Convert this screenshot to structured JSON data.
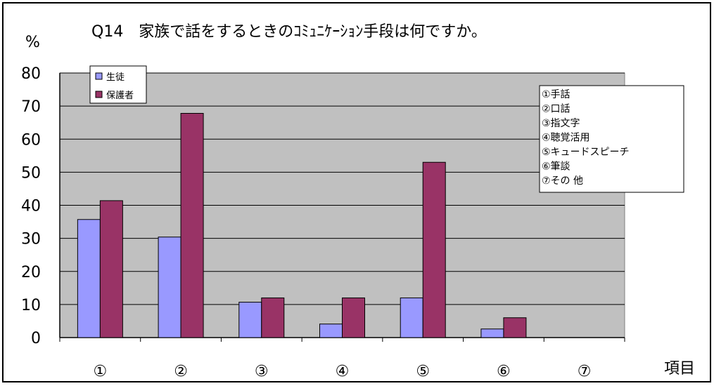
{
  "chart_data": {
    "type": "bar",
    "title": "Q14　家族で話をするときのｺﾐｭﾆｹｰｼｮﾝ手段は何ですか。",
    "ylabel": "%",
    "xlabel": "項目",
    "ylim": [
      0,
      80
    ],
    "yticks": [
      0,
      10,
      20,
      30,
      40,
      50,
      60,
      70,
      80
    ],
    "categories": [
      "①",
      "②",
      "③",
      "④",
      "⑤",
      "⑥",
      "⑦"
    ],
    "series": [
      {
        "name": "生徒",
        "color": "#9999ff",
        "values": [
          35.7,
          30.4,
          10.7,
          4.1,
          12.0,
          2.6,
          0
        ]
      },
      {
        "name": "保護者",
        "color": "#993366",
        "values": [
          41.4,
          67.8,
          12.0,
          12.0,
          53.0,
          6.0,
          0
        ]
      }
    ],
    "grid": true,
    "plot_background": "#c0c0c0",
    "legend_placement": "top-left",
    "item_notes": [
      "①手話",
      "②口話",
      "③指文字",
      "④聴覚活用",
      "⑤キュードスピーチ",
      "⑥筆談",
      "⑦その 他"
    ]
  }
}
